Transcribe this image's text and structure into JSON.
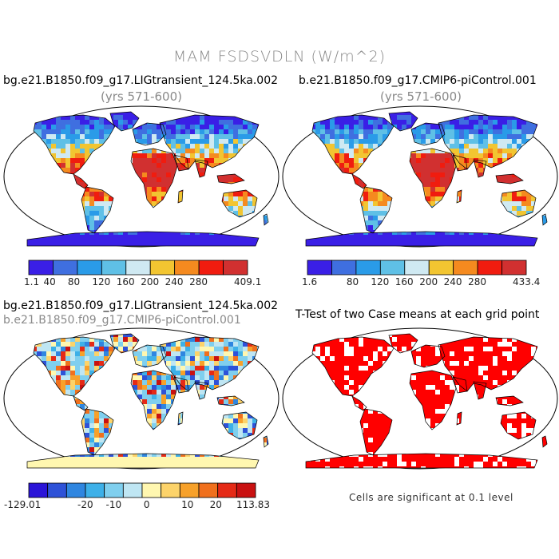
{
  "figure": {
    "title": "MAM FSDSVDLN (W/m^2)",
    "panel1": {
      "case": "bg.e21.B1850.f09_g17.LIGtransient_124.5ka.002",
      "years": "(yrs 571-600)",
      "colorbar": {
        "min_label": "1.1",
        "max_label": "409.1",
        "ticks": [
          "40",
          "80",
          "120",
          "160",
          "200",
          "240",
          "280"
        ]
      }
    },
    "panel2": {
      "case": "b.e21.B1850.f09_g17.CMIP6-piControl.001",
      "years": "(yrs 571-600)",
      "colorbar": {
        "min_label": "1.6",
        "max_label": "433.4",
        "ticks": [
          "80",
          "120",
          "160",
          "200",
          "240",
          "280"
        ]
      }
    },
    "panel3": {
      "case_a": "bg.e21.B1850.f09_g17.LIGtransient_124.5ka.002",
      "case_b": "b.e21.B1850.f09_g17.CMIP6-piControl.001",
      "colorbar": {
        "min_label": "-129.01",
        "max_label": "113.83",
        "ticks": [
          "-20",
          "-10",
          "0",
          "10",
          "20"
        ]
      }
    },
    "panel4": {
      "title": "T-Test of two Case means at each grid point",
      "note": "Cells are significant at 0.1 level"
    }
  },
  "colors": {
    "abs_scale": [
      "#3a1fe6",
      "#3f6fe0",
      "#2a9be8",
      "#5fc0e6",
      "#cfe9f2",
      "#f2c531",
      "#f58a1f",
      "#f01c0f",
      "#d13030"
    ],
    "diff_scale": [
      "#2b15d8",
      "#2e52d8",
      "#2f86e0",
      "#3db0e8",
      "#7fcfee",
      "#bfe6f3",
      "#fff7b0",
      "#fcd36a",
      "#f7a12a",
      "#f0701d",
      "#e52a16",
      "#c91111"
    ],
    "sig": "#ff0000"
  }
}
